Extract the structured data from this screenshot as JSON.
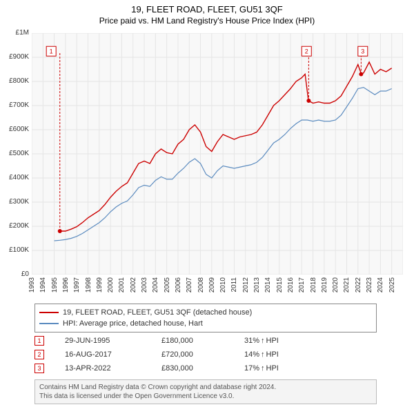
{
  "title": "19, FLEET ROAD, FLEET, GU51 3QF",
  "subtitle": "Price paid vs. HM Land Registry's House Price Index (HPI)",
  "chart": {
    "type": "line",
    "background_color": "#f8f8f8",
    "grid_color": "#e5e5e5",
    "axis_text_color": "#333333",
    "y": {
      "min": 0,
      "max": 1000000,
      "tick_step": 100000,
      "labels": [
        "£0",
        "£100K",
        "£200K",
        "£300K",
        "£400K",
        "£500K",
        "£600K",
        "£700K",
        "£800K",
        "£900K",
        "£1M"
      ]
    },
    "x": {
      "min": 1993,
      "max": 2026,
      "tick_step": 1,
      "labels": [
        "1993",
        "1994",
        "1995",
        "1996",
        "1997",
        "1998",
        "1999",
        "2000",
        "2001",
        "2002",
        "2003",
        "2004",
        "2005",
        "2006",
        "2007",
        "2008",
        "2009",
        "2010",
        "2011",
        "2012",
        "2013",
        "2014",
        "2015",
        "2016",
        "2017",
        "2018",
        "2019",
        "2020",
        "2021",
        "2022",
        "2023",
        "2024",
        "2025"
      ]
    },
    "series": [
      {
        "name": "19, FLEET ROAD, FLEET, GU51 3QF (detached house)",
        "color": "#cc0000",
        "line_width": 1.4,
        "data": [
          [
            1995.5,
            180000
          ],
          [
            1996,
            180000
          ],
          [
            1996.5,
            188000
          ],
          [
            1997,
            198000
          ],
          [
            1997.5,
            215000
          ],
          [
            1998,
            235000
          ],
          [
            1998.5,
            250000
          ],
          [
            1999,
            265000
          ],
          [
            1999.5,
            290000
          ],
          [
            2000,
            320000
          ],
          [
            2000.5,
            345000
          ],
          [
            2001,
            365000
          ],
          [
            2001.5,
            380000
          ],
          [
            2002,
            420000
          ],
          [
            2002.5,
            460000
          ],
          [
            2003,
            470000
          ],
          [
            2003.5,
            460000
          ],
          [
            2004,
            500000
          ],
          [
            2004.5,
            520000
          ],
          [
            2005,
            505000
          ],
          [
            2005.5,
            500000
          ],
          [
            2006,
            540000
          ],
          [
            2006.5,
            560000
          ],
          [
            2007,
            600000
          ],
          [
            2007.5,
            620000
          ],
          [
            2008,
            590000
          ],
          [
            2008.5,
            530000
          ],
          [
            2009,
            510000
          ],
          [
            2009.5,
            550000
          ],
          [
            2010,
            580000
          ],
          [
            2010.5,
            570000
          ],
          [
            2011,
            560000
          ],
          [
            2011.5,
            570000
          ],
          [
            2012,
            575000
          ],
          [
            2012.5,
            580000
          ],
          [
            2013,
            590000
          ],
          [
            2013.5,
            620000
          ],
          [
            2014,
            660000
          ],
          [
            2014.5,
            700000
          ],
          [
            2015,
            720000
          ],
          [
            2015.5,
            745000
          ],
          [
            2016,
            770000
          ],
          [
            2016.5,
            800000
          ],
          [
            2017,
            815000
          ],
          [
            2017.3,
            830000
          ],
          [
            2017.6,
            720000
          ],
          [
            2018,
            710000
          ],
          [
            2018.5,
            715000
          ],
          [
            2019,
            710000
          ],
          [
            2019.5,
            710000
          ],
          [
            2020,
            720000
          ],
          [
            2020.5,
            740000
          ],
          [
            2021,
            780000
          ],
          [
            2021.5,
            820000
          ],
          [
            2022,
            870000
          ],
          [
            2022.3,
            830000
          ],
          [
            2022.5,
            835000
          ],
          [
            2023,
            880000
          ],
          [
            2023.5,
            830000
          ],
          [
            2024,
            850000
          ],
          [
            2024.5,
            840000
          ],
          [
            2025,
            855000
          ]
        ]
      },
      {
        "name": "HPI: Average price, detached house, Hart",
        "color": "#5b8bbf",
        "line_width": 1.2,
        "data": [
          [
            1995,
            140000
          ],
          [
            1995.5,
            142000
          ],
          [
            1996,
            145000
          ],
          [
            1996.5,
            150000
          ],
          [
            1997,
            158000
          ],
          [
            1997.5,
            170000
          ],
          [
            1998,
            185000
          ],
          [
            1998.5,
            200000
          ],
          [
            1999,
            215000
          ],
          [
            1999.5,
            235000
          ],
          [
            2000,
            260000
          ],
          [
            2000.5,
            280000
          ],
          [
            2001,
            295000
          ],
          [
            2001.5,
            305000
          ],
          [
            2002,
            330000
          ],
          [
            2002.5,
            360000
          ],
          [
            2003,
            370000
          ],
          [
            2003.5,
            365000
          ],
          [
            2004,
            390000
          ],
          [
            2004.5,
            405000
          ],
          [
            2005,
            395000
          ],
          [
            2005.5,
            395000
          ],
          [
            2006,
            420000
          ],
          [
            2006.5,
            440000
          ],
          [
            2007,
            465000
          ],
          [
            2007.5,
            480000
          ],
          [
            2008,
            460000
          ],
          [
            2008.5,
            415000
          ],
          [
            2009,
            400000
          ],
          [
            2009.5,
            430000
          ],
          [
            2010,
            450000
          ],
          [
            2010.5,
            445000
          ],
          [
            2011,
            440000
          ],
          [
            2011.5,
            445000
          ],
          [
            2012,
            450000
          ],
          [
            2012.5,
            455000
          ],
          [
            2013,
            465000
          ],
          [
            2013.5,
            485000
          ],
          [
            2014,
            515000
          ],
          [
            2014.5,
            545000
          ],
          [
            2015,
            560000
          ],
          [
            2015.5,
            580000
          ],
          [
            2016,
            605000
          ],
          [
            2016.5,
            625000
          ],
          [
            2017,
            640000
          ],
          [
            2017.5,
            640000
          ],
          [
            2018,
            635000
          ],
          [
            2018.5,
            640000
          ],
          [
            2019,
            635000
          ],
          [
            2019.5,
            635000
          ],
          [
            2020,
            640000
          ],
          [
            2020.5,
            660000
          ],
          [
            2021,
            695000
          ],
          [
            2021.5,
            730000
          ],
          [
            2022,
            770000
          ],
          [
            2022.5,
            775000
          ],
          [
            2023,
            760000
          ],
          [
            2023.5,
            745000
          ],
          [
            2024,
            760000
          ],
          [
            2024.5,
            760000
          ],
          [
            2025,
            770000
          ]
        ]
      }
    ],
    "markers": [
      {
        "num": "1",
        "x": 1995.5,
        "y": 180000,
        "label_x": 1994.3,
        "label_y": 945000
      },
      {
        "num": "2",
        "x": 2017.62,
        "y": 720000,
        "label_x": 2017.0,
        "label_y": 945000
      },
      {
        "num": "3",
        "x": 2022.28,
        "y": 830000,
        "label_x": 2022.0,
        "label_y": 945000
      }
    ],
    "marker_color": "#cc0000",
    "marker_dash": "3,2"
  },
  "legend": {
    "items": [
      {
        "color": "#cc0000",
        "label": "19, FLEET ROAD, FLEET, GU51 3QF (detached house)"
      },
      {
        "color": "#5b8bbf",
        "label": "HPI: Average price, detached house, Hart"
      }
    ]
  },
  "transactions": [
    {
      "num": "1",
      "date": "29-JUN-1995",
      "price": "£180,000",
      "delta": "31%",
      "dir": "↑",
      "suffix": "HPI"
    },
    {
      "num": "2",
      "date": "16-AUG-2017",
      "price": "£720,000",
      "delta": "14%",
      "dir": "↑",
      "suffix": "HPI"
    },
    {
      "num": "3",
      "date": "13-APR-2022",
      "price": "£830,000",
      "delta": "17%",
      "dir": "↑",
      "suffix": "HPI"
    }
  ],
  "footer": {
    "line1": "Contains HM Land Registry data © Crown copyright and database right 2024.",
    "line2": "This data is licensed under the Open Government Licence v3.0."
  }
}
